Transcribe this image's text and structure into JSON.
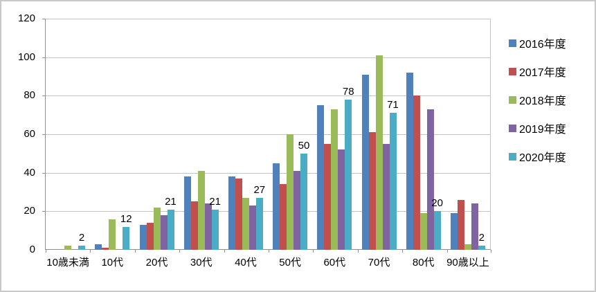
{
  "chart_data": {
    "type": "bar",
    "title": "",
    "xlabel": "",
    "ylabel": "",
    "categories": [
      "10歳未満",
      "10代",
      "20代",
      "30代",
      "40代",
      "50代",
      "60代",
      "70代",
      "80代",
      "90歳以上"
    ],
    "series": [
      {
        "name": "2016年度",
        "color": "#4F81BD",
        "values": [
          0,
          3,
          13,
          38,
          38,
          45,
          75,
          91,
          92,
          19
        ]
      },
      {
        "name": "2017年度",
        "color": "#C0504D",
        "values": [
          0,
          1,
          14,
          25,
          37,
          34,
          55,
          61,
          80,
          26
        ]
      },
      {
        "name": "2018年度",
        "color": "#9BBB59",
        "values": [
          2,
          16,
          22,
          41,
          27,
          60,
          73,
          101,
          19,
          3
        ]
      },
      {
        "name": "2019年度",
        "color": "#8064A2",
        "values": [
          0,
          0,
          18,
          24,
          23,
          41,
          52,
          55,
          73,
          24
        ]
      },
      {
        "name": "2020年度",
        "color": "#4BACC6",
        "values": [
          2,
          12,
          21,
          21,
          27,
          50,
          78,
          71,
          20,
          2
        ],
        "show_labels": true,
        "data_labels": [
          "2",
          "12",
          "21",
          "21",
          "27",
          "50",
          "78",
          "71",
          "20",
          "2"
        ]
      }
    ],
    "ylim": [
      0,
      120
    ],
    "y_ticks": [
      "0",
      "20",
      "40",
      "60",
      "80",
      "100",
      "120"
    ],
    "grid": "horizontal",
    "legend_position": "right"
  },
  "colors": {
    "background": "#FFFFFF",
    "outer_border": "#C9C9C9",
    "gridline": "#C4C4C4",
    "axis_line": "#8E8E8E",
    "text": "#000000"
  }
}
